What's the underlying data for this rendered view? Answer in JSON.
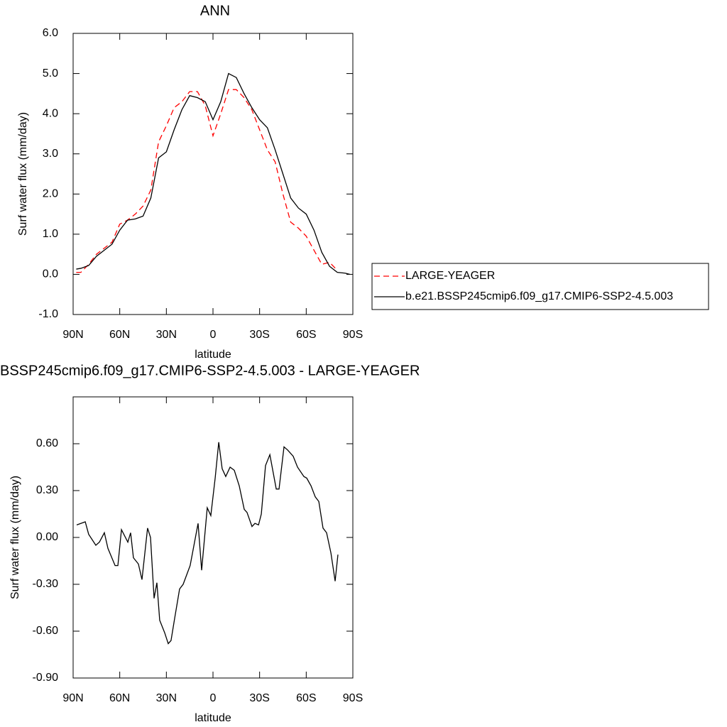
{
  "chart_data": [
    {
      "type": "line",
      "title": "ANN",
      "xlabel": "latitude",
      "ylabel": "Surf water flux (mm/day)",
      "x": [
        88,
        85,
        80,
        75,
        70,
        65,
        60,
        55,
        50,
        45,
        40,
        35,
        30,
        25,
        20,
        15,
        10,
        5,
        0,
        -5,
        -10,
        -15,
        -20,
        -25,
        -30,
        -35,
        -40,
        -45,
        -50,
        -55,
        -60,
        -65,
        -70,
        -75,
        -80,
        -85,
        -88
      ],
      "series": [
        {
          "name": "LARGE-YEAGER",
          "color": "#ff0000",
          "dash": "dashed",
          "values": [
            0.05,
            0.05,
            0.25,
            0.5,
            0.65,
            0.8,
            1.25,
            1.35,
            1.5,
            1.7,
            2.1,
            3.3,
            3.7,
            4.15,
            4.3,
            4.55,
            4.55,
            4.2,
            3.45,
            4.0,
            4.6,
            4.6,
            4.4,
            4.1,
            3.6,
            3.1,
            2.8,
            2.0,
            1.3,
            1.15,
            0.95,
            0.6,
            0.25,
            0.3,
            0.1,
            null,
            null
          ]
        },
        {
          "name": "b.e21.BSSP245cmip6.f09_g17.CMIP6-SSP2-4.5.003",
          "color": "#000000",
          "dash": "solid",
          "values": [
            0.13,
            0.15,
            0.22,
            0.45,
            0.6,
            0.75,
            1.1,
            1.35,
            1.38,
            1.45,
            1.9,
            2.9,
            3.05,
            3.6,
            4.1,
            4.45,
            4.4,
            4.3,
            3.85,
            4.3,
            5.0,
            4.9,
            4.5,
            4.15,
            3.85,
            3.65,
            3.1,
            2.5,
            1.9,
            1.65,
            1.5,
            1.1,
            0.55,
            0.2,
            0.05,
            0.03,
            0.0
          ]
        }
      ],
      "xlim": [
        90,
        -90
      ],
      "xticks": [
        {
          "value": 90,
          "label": "90N"
        },
        {
          "value": 60,
          "label": "60N"
        },
        {
          "value": 30,
          "label": "30N"
        },
        0,
        {
          "value": -30,
          "label": "30S"
        },
        {
          "value": -60,
          "label": "60S"
        },
        {
          "value": -90,
          "label": "90S"
        }
      ],
      "ylim": [
        -1,
        6
      ],
      "yticks": [
        {
          "value": -1,
          "label": "-1.0"
        },
        {
          "value": 0,
          "label": "0.0"
        },
        {
          "value": 1,
          "label": "1.0"
        },
        {
          "value": 2,
          "label": "2.0"
        },
        {
          "value": 3,
          "label": "3.0"
        },
        {
          "value": 4,
          "label": "4.0"
        },
        {
          "value": 5,
          "label": "5.0"
        },
        {
          "value": 6,
          "label": "6.0"
        }
      ],
      "grid": false,
      "legend": "right"
    },
    {
      "type": "line",
      "title": "BSSP245cmip6.f09_g17.CMIP6-SSP2-4.5.003 - LARGE-YEAGER",
      "xlabel": "latitude",
      "ylabel": "Surf water flux (mm/day)",
      "x": [
        87.7,
        82.2,
        80,
        75.4,
        73.1,
        69.9,
        67.6,
        63.0,
        61.2,
        58.9,
        54.8,
        53.0,
        51.2,
        48.0,
        45.7,
        42.1,
        40.2,
        37.9,
        36.1,
        34.3,
        31.1,
        28.8,
        27.0,
        24.7,
        21.5,
        19.2,
        14.7,
        9.6,
        7.3,
        3.7,
        1.4,
        -1.4,
        -3.7,
        -5.9,
        -8.2,
        -11.0,
        -13.7,
        -16.9,
        -20.1,
        -21.9,
        -25.1,
        -27.0,
        -29.3,
        -31.1,
        -33.8,
        -36.6,
        -40.7,
        -42.5,
        -45.7,
        -48.0,
        -51.6,
        -54.4,
        -58.5,
        -60.3,
        -63.1,
        -65.8,
        -68.1,
        -70.8,
        -73.1,
        -75.9,
        -78.6,
        -80.4
      ],
      "values": [
        0.08,
        0.1,
        0.02,
        -0.05,
        -0.03,
        0.03,
        -0.07,
        -0.18,
        -0.18,
        0.05,
        -0.03,
        0.03,
        -0.13,
        -0.17,
        -0.27,
        0.06,
        0.0,
        -0.39,
        -0.29,
        -0.53,
        -0.61,
        -0.68,
        -0.66,
        -0.52,
        -0.33,
        -0.3,
        -0.18,
        0.09,
        -0.21,
        0.19,
        0.14,
        0.38,
        0.61,
        0.44,
        0.39,
        0.45,
        0.43,
        0.33,
        0.18,
        0.16,
        0.07,
        0.09,
        0.08,
        0.15,
        0.46,
        0.53,
        0.31,
        0.31,
        0.58,
        0.56,
        0.52,
        0.45,
        0.39,
        0.38,
        0.33,
        0.26,
        0.23,
        0.06,
        0.03,
        -0.1,
        -0.28,
        -0.11
      ],
      "color": "#000000",
      "xlim": [
        90,
        -90
      ],
      "xticks": [
        {
          "value": 90,
          "label": "90N"
        },
        {
          "value": 60,
          "label": "60N"
        },
        {
          "value": 30,
          "label": "30N"
        },
        0,
        {
          "value": -30,
          "label": "30S"
        },
        {
          "value": -60,
          "label": "60S"
        },
        {
          "value": -90,
          "label": "90S"
        }
      ],
      "ylim": [
        -0.9,
        0.9
      ],
      "yticks": [
        {
          "value": -0.9,
          "label": "-0.90"
        },
        {
          "value": -0.6,
          "label": "-0.60"
        },
        {
          "value": -0.3,
          "label": "-0.30"
        },
        {
          "value": 0,
          "label": "0.00"
        },
        {
          "value": 0.3,
          "label": "0.30"
        },
        {
          "value": 0.6,
          "label": "0.60"
        }
      ],
      "grid": false
    }
  ]
}
